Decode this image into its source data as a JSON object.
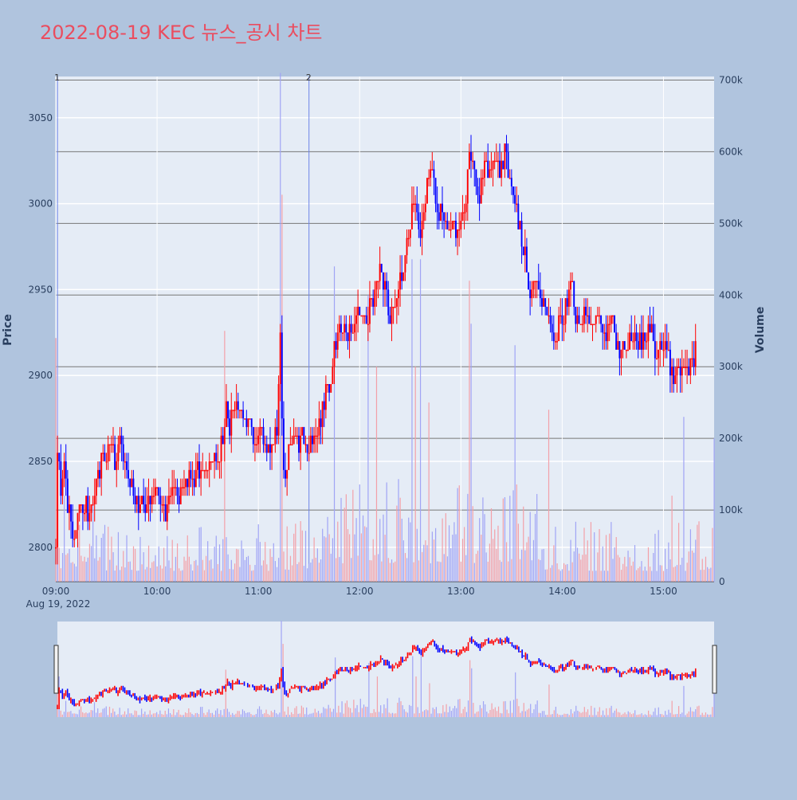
{
  "chart_data": {
    "type": "candlestick",
    "title": "2022-08-19 KEC 뉴스_공시 차트",
    "date_label": "Aug 19, 2022",
    "ylabel_price": "Price",
    "ylabel_volume": "Volume",
    "price_ylim": [
      2780,
      3074
    ],
    "volume_ylim": [
      0,
      705000
    ],
    "price_ticks": [
      2800,
      2850,
      2900,
      2950,
      3000,
      3050
    ],
    "volume_ticks": [
      0,
      100000,
      200000,
      300000,
      400000,
      500000,
      600000,
      700000
    ],
    "volume_tick_labels": [
      "0",
      "100k",
      "200k",
      "300k",
      "400k",
      "500k",
      "600k",
      "700k"
    ],
    "x_range": [
      "09:00",
      "15:30"
    ],
    "x_ticks": [
      "09:00",
      "10:00",
      "11:00",
      "12:00",
      "13:00",
      "14:00",
      "15:00"
    ],
    "up_color": "#ff0000",
    "down_color": "#0000ff",
    "annotations": [
      {
        "label": "1",
        "time": "09:01"
      },
      {
        "label": "2",
        "time": "11:30"
      }
    ],
    "price_keypoints": [
      [
        "09:00",
        2800
      ],
      [
        "09:01",
        2860
      ],
      [
        "09:03",
        2830
      ],
      [
        "09:05",
        2845
      ],
      [
        "09:08",
        2820
      ],
      [
        "09:11",
        2805
      ],
      [
        "09:14",
        2825
      ],
      [
        "09:17",
        2825
      ],
      [
        "09:20",
        2815
      ],
      [
        "09:23",
        2835
      ],
      [
        "09:26",
        2845
      ],
      [
        "09:29",
        2850
      ],
      [
        "09:32",
        2860
      ],
      [
        "09:35",
        2850
      ],
      [
        "09:38",
        2860
      ],
      [
        "09:41",
        2850
      ],
      [
        "09:44",
        2840
      ],
      [
        "09:47",
        2825
      ],
      [
        "09:50",
        2825
      ],
      [
        "09:53",
        2820
      ],
      [
        "09:56",
        2825
      ],
      [
        "10:00",
        2835
      ],
      [
        "10:02",
        2825
      ],
      [
        "10:04",
        2820
      ],
      [
        "10:06",
        2825
      ],
      [
        "10:10",
        2830
      ],
      [
        "10:15",
        2835
      ],
      [
        "10:20",
        2840
      ],
      [
        "10:25",
        2845
      ],
      [
        "10:30",
        2848
      ],
      [
        "10:35",
        2850
      ],
      [
        "10:38",
        2860
      ],
      [
        "10:41",
        2885
      ],
      [
        "10:43",
        2870
      ],
      [
        "10:46",
        2880
      ],
      [
        "10:50",
        2875
      ],
      [
        "10:54",
        2870
      ],
      [
        "10:58",
        2865
      ],
      [
        "11:02",
        2870
      ],
      [
        "11:06",
        2860
      ],
      [
        "11:08",
        2855
      ],
      [
        "11:11",
        2870
      ],
      [
        "11:13",
        2920
      ],
      [
        "11:15",
        2845
      ],
      [
        "11:17",
        2850
      ],
      [
        "11:20",
        2860
      ],
      [
        "11:25",
        2865
      ],
      [
        "11:30",
        2860
      ],
      [
        "11:34",
        2870
      ],
      [
        "11:38",
        2880
      ],
      [
        "11:42",
        2895
      ],
      [
        "11:45",
        2915
      ],
      [
        "11:48",
        2935
      ],
      [
        "11:52",
        2925
      ],
      [
        "11:56",
        2925
      ],
      [
        "12:00",
        2935
      ],
      [
        "12:04",
        2930
      ],
      [
        "12:08",
        2945
      ],
      [
        "12:10",
        2960
      ],
      [
        "12:13",
        2960
      ],
      [
        "12:16",
        2945
      ],
      [
        "12:19",
        2935
      ],
      [
        "12:22",
        2945
      ],
      [
        "12:25",
        2960
      ],
      [
        "12:28",
        2975
      ],
      [
        "12:31",
        3000
      ],
      [
        "12:34",
        2990
      ],
      [
        "12:36",
        2975
      ],
      [
        "12:38",
        2990
      ],
      [
        "12:41",
        3015
      ],
      [
        "12:44",
        3010
      ],
      [
        "12:47",
        2995
      ],
      [
        "12:50",
        2985
      ],
      [
        "12:53",
        2980
      ],
      [
        "12:56",
        2990
      ],
      [
        "13:00",
        2985
      ],
      [
        "13:02",
        2995
      ],
      [
        "13:05",
        3025
      ],
      [
        "13:08",
        3015
      ],
      [
        "13:11",
        3005
      ],
      [
        "13:14",
        3025
      ],
      [
        "13:17",
        3015
      ],
      [
        "13:20",
        3025
      ],
      [
        "13:23",
        3020
      ],
      [
        "13:26",
        3030
      ],
      [
        "13:29",
        3015
      ],
      [
        "13:32",
        3000
      ],
      [
        "13:35",
        2985
      ],
      [
        "13:38",
        2970
      ],
      [
        "13:41",
        2950
      ],
      [
        "13:44",
        2950
      ],
      [
        "13:47",
        2945
      ],
      [
        "13:50",
        2935
      ],
      [
        "13:53",
        2930
      ],
      [
        "13:56",
        2925
      ],
      [
        "14:00",
        2935
      ],
      [
        "14:03",
        2940
      ],
      [
        "14:06",
        2950
      ],
      [
        "14:08",
        2930
      ],
      [
        "14:11",
        2935
      ],
      [
        "14:14",
        2935
      ],
      [
        "14:17",
        2925
      ],
      [
        "14:20",
        2935
      ],
      [
        "14:23",
        2935
      ],
      [
        "14:26",
        2920
      ],
      [
        "14:29",
        2930
      ],
      [
        "14:32",
        2920
      ],
      [
        "14:35",
        2915
      ],
      [
        "14:38",
        2920
      ],
      [
        "14:41",
        2925
      ],
      [
        "14:44",
        2925
      ],
      [
        "14:47",
        2920
      ],
      [
        "14:50",
        2925
      ],
      [
        "14:53",
        2925
      ],
      [
        "14:56",
        2915
      ],
      [
        "15:00",
        2910
      ],
      [
        "15:03",
        2915
      ],
      [
        "15:05",
        2900
      ],
      [
        "15:08",
        2905
      ],
      [
        "15:12",
        2910
      ],
      [
        "15:15",
        2905
      ],
      [
        "15:17",
        2905
      ],
      [
        "15:19",
        2920
      ]
    ],
    "volume_spikes": [
      [
        "09:00",
        340000
      ],
      [
        "09:01",
        300000
      ],
      [
        "09:05",
        120000
      ],
      [
        "09:22",
        110000
      ],
      [
        "10:40",
        350000
      ],
      [
        "11:13",
        710000
      ],
      [
        "11:14",
        540000
      ],
      [
        "11:45",
        440000
      ],
      [
        "12:05",
        400000
      ],
      [
        "12:10",
        300000
      ],
      [
        "12:31",
        450000
      ],
      [
        "12:33",
        300000
      ],
      [
        "12:36",
        450000
      ],
      [
        "12:41",
        250000
      ],
      [
        "13:05",
        420000
      ],
      [
        "13:06",
        360000
      ],
      [
        "13:32",
        330000
      ],
      [
        "13:52",
        240000
      ],
      [
        "15:05",
        120000
      ],
      [
        "15:12",
        230000
      ],
      [
        "15:30",
        200000
      ]
    ]
  }
}
